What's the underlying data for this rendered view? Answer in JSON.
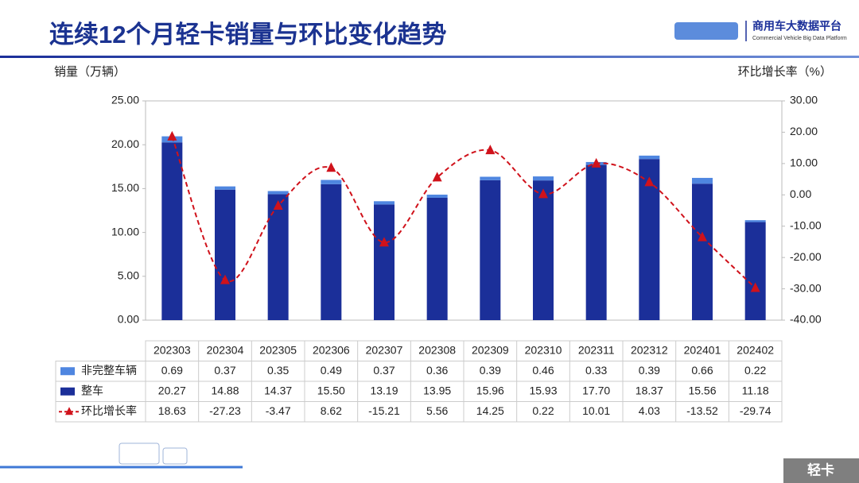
{
  "chart_data": {
    "type": "bar",
    "title": "连续12个月轻卡销量与环比变化趋势",
    "y_label": "销量（万辆）",
    "y2_label": "环比增长率（%）",
    "logo_text": "商用车大数据平台",
    "logo_subtext": "Commercial Vehicle Big Data Platform",
    "tag": "轻卡",
    "categories": [
      "202303",
      "202304",
      "202305",
      "202306",
      "202307",
      "202308",
      "202309",
      "202310",
      "202311",
      "202312",
      "202401",
      "202402"
    ],
    "series": [
      {
        "name": "非完整车辆",
        "type": "bar",
        "stack": true,
        "color": "#4f86e0",
        "values": [
          0.69,
          0.37,
          0.35,
          0.49,
          0.37,
          0.36,
          0.39,
          0.46,
          0.33,
          0.39,
          0.66,
          0.22
        ],
        "value_labels": [
          "0.69",
          "0.37",
          "0.35",
          "0.49",
          "0.37",
          "0.36",
          "0.39",
          "0.46",
          "0.33",
          "0.39",
          "0.66",
          "0.22"
        ]
      },
      {
        "name": "整车",
        "type": "bar",
        "stack": true,
        "color": "#1b2f99",
        "values": [
          20.27,
          14.88,
          14.37,
          15.5,
          13.19,
          13.95,
          15.96,
          15.93,
          17.7,
          18.37,
          15.56,
          11.18
        ],
        "value_labels": [
          "20.27",
          "14.88",
          "14.37",
          "15.50",
          "13.19",
          "13.95",
          "15.96",
          "15.93",
          "17.70",
          "18.37",
          "15.56",
          "11.18"
        ]
      },
      {
        "name": "环比增长率",
        "type": "line",
        "axis": "y2",
        "color": "#d0121b",
        "values": [
          18.63,
          -27.23,
          -3.47,
          8.62,
          -15.21,
          5.56,
          14.25,
          0.22,
          10.01,
          4.03,
          -13.52,
          -29.74
        ],
        "value_labels": [
          "18.63",
          "-27.23",
          "-3.47",
          "8.62",
          "-15.21",
          "5.56",
          "14.25",
          "0.22",
          "10.01",
          "4.03",
          "-13.52",
          "-29.74"
        ]
      }
    ],
    "ylim": [
      0,
      25
    ],
    "yticks": [
      {
        "value": 0,
        "label": "0.00"
      },
      {
        "value": 5,
        "label": "5.00"
      },
      {
        "value": 10,
        "label": "10.00"
      },
      {
        "value": 15,
        "label": "15.00"
      },
      {
        "value": 20,
        "label": "20.00"
      },
      {
        "value": 25,
        "label": "25.00"
      }
    ],
    "y2lim": [
      -40,
      30
    ],
    "y2ticks": [
      {
        "value": -40,
        "label": "-40.00"
      },
      {
        "value": -30,
        "label": "-30.00"
      },
      {
        "value": -20,
        "label": "-20.00"
      },
      {
        "value": -10,
        "label": "-10.00"
      },
      {
        "value": 0,
        "label": "0.00"
      },
      {
        "value": 10,
        "label": "10.00"
      },
      {
        "value": 20,
        "label": "20.00"
      },
      {
        "value": 30,
        "label": "30.00"
      }
    ]
  }
}
